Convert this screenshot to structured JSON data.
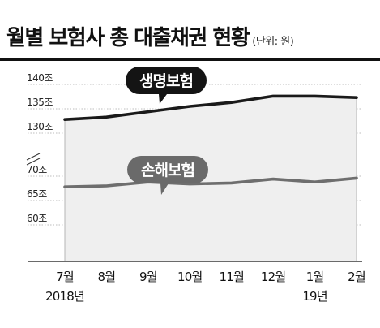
{
  "header": {
    "title": "월별 보험사 총 대출채권 현황",
    "unit": "(단위: 원)"
  },
  "chart_data": {
    "type": "line",
    "categories": [
      "7월",
      "8월",
      "9월",
      "10월",
      "11월",
      "12월",
      "1월",
      "2월"
    ],
    "year_labels": [
      "2018년",
      "",
      "",
      "",
      "",
      "",
      "19년",
      ""
    ],
    "y_tick_labels_upper": [
      "130조",
      "135조",
      "140조"
    ],
    "y_tick_labels_lower": [
      "60조",
      "65조",
      "70조"
    ],
    "axis_break": true,
    "ylim_upper": [
      128,
      142
    ],
    "ylim_lower": [
      58,
      72
    ],
    "series": [
      {
        "name": "생명보험",
        "values": [
          132.8,
          133.3,
          134.4,
          135.5,
          136.3,
          137.6,
          137.6,
          137.3
        ],
        "color": "#1a1a1a"
      },
      {
        "name": "손해보험",
        "values": [
          67.8,
          68.0,
          68.8,
          68.4,
          68.6,
          69.4,
          68.8,
          69.6
        ],
        "color": "#6e6e6e"
      }
    ],
    "area_fill": "#efefef",
    "grid": "horizontal"
  }
}
